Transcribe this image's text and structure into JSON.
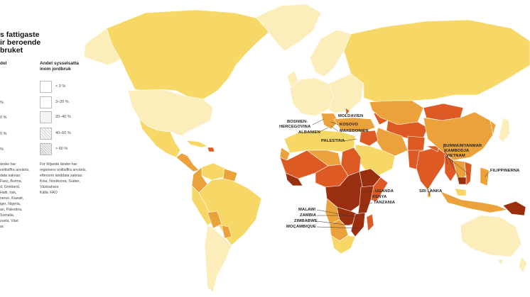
{
  "title": {
    "lines": [
      "s fattigaste",
      "ir beroende",
      "bruket"
    ]
  },
  "legend_left": {
    "heading": "del",
    "items": [
      "%",
      "0 %",
      "0 %",
      "%"
    ]
  },
  "legend": {
    "heading_lines": [
      "Andel sysselsatta",
      "inom jordbruk"
    ],
    "items": [
      "< 3 %",
      "3–20 %",
      "20–40 %",
      "40–60 %",
      "> 60 %"
    ]
  },
  "note_left": {
    "lines": [
      "änder har",
      "snittsiffra använts,",
      "data saknas:",
      "Faso, Burma,",
      "d, Grekland,",
      "Haiti, Irak,",
      "nerun, Kuwait,",
      "iger, Nigeria,",
      "an, Palestina,",
      "Somalia,",
      "zuela, Väst",
      "ar."
    ]
  },
  "note_right": {
    "lines": [
      "För följande länder har",
      "regionens snittsiffra använts,",
      "eftersom landdata saknas:",
      "Kina, Nordkorea, Sudan,",
      "Västsahara",
      "Källa: FAO"
    ]
  },
  "map_labels": {
    "moldavien": "MOLDAVIEN",
    "bosnien": "BOSNIEN-",
    "hercegovina": "HERCEGOVINA",
    "kosovo": "KOSOVO",
    "albanien": "ALBANIEN",
    "makedonien": "MAKEDONIEN",
    "palestina": "PALESTINA",
    "burma": "BURMA/MYANMAR",
    "kambodja": "KAMBODJA",
    "vietnam": "VIETNAM",
    "filippinerna": "FILIPPINERNA",
    "sri_lanka": "SRI LANKA",
    "uganda": "UGANDA",
    "kenya": "KENYA",
    "tanzania": "TANZANIA",
    "malawi": "MALAWI",
    "zambia": "ZAMBIA",
    "zimbabwe": "ZIMBABWE",
    "mocambique": "MOÇAMBIQUE"
  },
  "colors": {
    "lt3": "#fbeebb",
    "c3_20": "#f7d765",
    "c20_40": "#eca23a",
    "c40_60": "#de5a24",
    "gt60": "#9a2f10",
    "stroke": "#ffffff",
    "leader": "#333333"
  }
}
